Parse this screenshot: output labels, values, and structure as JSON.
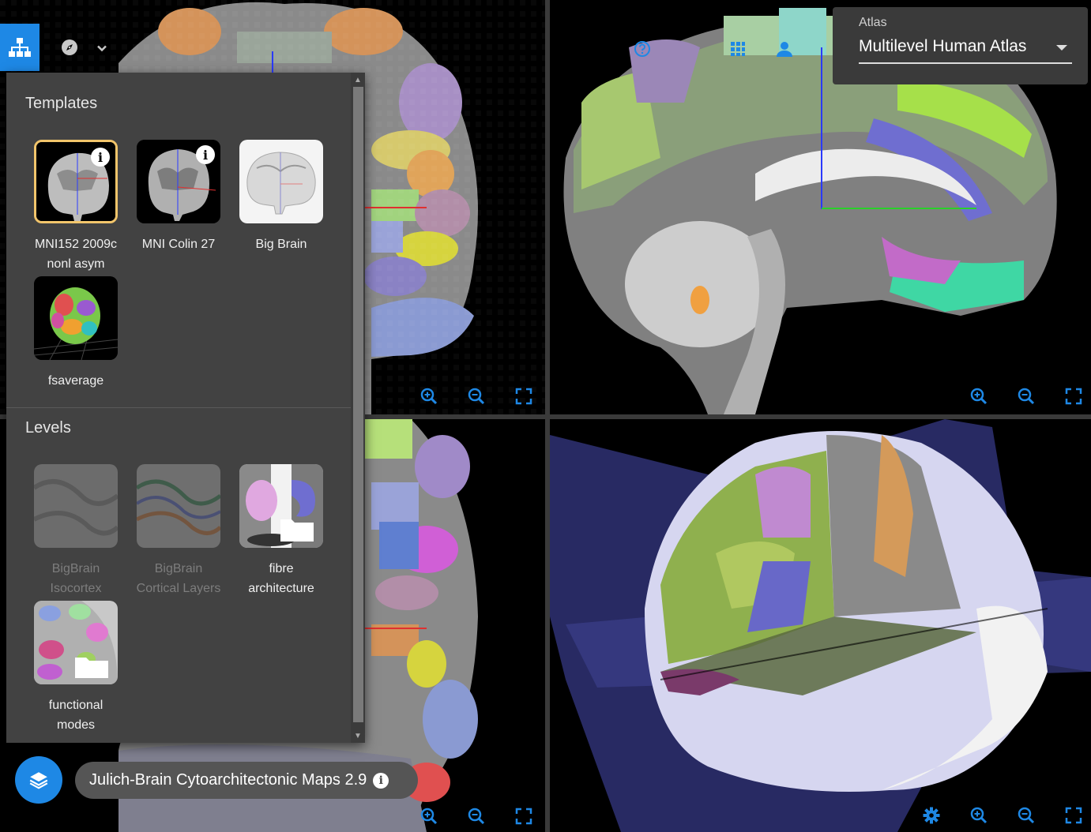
{
  "templates_section": {
    "title": "Templates",
    "items": [
      {
        "label_line1": "MNI152 2009c",
        "label_line2": "nonl asym",
        "selected": true,
        "info": "i"
      },
      {
        "label_line1": "MNI Colin 27",
        "label_line2": "",
        "selected": false,
        "info": "i"
      },
      {
        "label_line1": "Big Brain",
        "label_line2": "",
        "selected": false
      },
      {
        "label_line1": "fsaverage",
        "label_line2": "",
        "selected": false
      }
    ]
  },
  "levels_section": {
    "title": "Levels",
    "items": [
      {
        "label_line1": "BigBrain",
        "label_line2": "Isocortex",
        "disabled": true
      },
      {
        "label_line1": "BigBrain",
        "label_line2": "Cortical Layers",
        "disabled": true
      },
      {
        "label_line1": "fibre",
        "label_line2": "architecture",
        "disabled": false
      },
      {
        "label_line1": "functional",
        "label_line2": "modes",
        "disabled": false
      }
    ]
  },
  "atlas_selector": {
    "label": "Atlas",
    "value": "Multilevel Human Atlas"
  },
  "parcellation_chip": {
    "label": "Julich-Brain Cytoarchitectonic Maps 2.9",
    "info": "i"
  },
  "icons": {
    "atlas_tree": "sitemap-icon",
    "compass": "compass-icon",
    "layers": "layers-icon",
    "zoom_in": "zoom-in-icon",
    "zoom_out": "zoom-out-icon",
    "fullscreen": "fullscreen-icon",
    "settings": "gear-icon",
    "help": "help-icon",
    "grid": "grid-icon",
    "user": "user-icon"
  },
  "colors": {
    "accent": "#1e88e5",
    "icon_blue": "#1e88e5",
    "selected_outline": "#f2c56b",
    "panel_bg": "#424242"
  }
}
